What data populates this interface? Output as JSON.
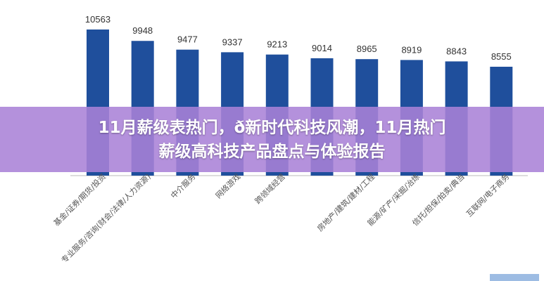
{
  "chart_data": {
    "type": "bar",
    "categories": [
      "基金/证券/期货/投资",
      "专业服务/咨询(财会/法律/人力资源)",
      "中介服务",
      "网络游戏",
      "跨领域经营",
      "",
      "房地产/建筑/建材/工程",
      "能源/矿产/采掘/冶炼",
      "信托/担保/拍卖/典当",
      "互联网/电子商务"
    ],
    "values": [
      10563,
      9948,
      9477,
      9337,
      9213,
      9014,
      8965,
      8919,
      8843,
      8555
    ],
    "bar_color": "#1f4f9c",
    "grid": false
  },
  "banner": {
    "line1": "11月薪级表热门，ð新时代科技风潮，11月热门",
    "line2": "薪级高科技产品盘点与体验报告",
    "color": "#aa82d7"
  }
}
